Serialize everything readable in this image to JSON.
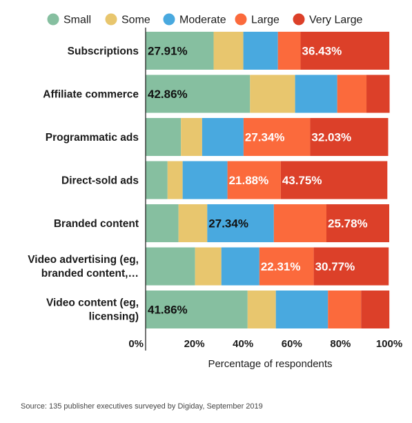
{
  "chart_data": {
    "type": "bar",
    "orientation": "horizontal",
    "stacked": true,
    "categories": [
      [
        "Subscriptions"
      ],
      [
        "Affiliate commerce"
      ],
      [
        "Programmatic ads"
      ],
      [
        "Direct-sold ads"
      ],
      [
        "Branded content"
      ],
      [
        "Video advertising (eg,",
        "branded content,…"
      ],
      [
        "Video content (eg,",
        "licensing)"
      ]
    ],
    "series": [
      {
        "name": "Small",
        "color": "#86bfa0",
        "values": [
          27.91,
          42.86,
          14.5,
          9.0,
          13.5,
          20.3,
          41.86
        ]
      },
      {
        "name": "Some",
        "color": "#e8c66e",
        "values": [
          12.2,
          18.5,
          8.7,
          6.2,
          11.8,
          10.8,
          11.6
        ]
      },
      {
        "name": "Moderate",
        "color": "#49a9df",
        "values": [
          14.2,
          17.3,
          17.0,
          18.4,
          27.34,
          15.6,
          21.4
        ]
      },
      {
        "name": "Large",
        "color": "#fb6a3c",
        "values": [
          9.3,
          12.0,
          27.34,
          21.88,
          21.58,
          22.31,
          13.6
        ]
      },
      {
        "name": "Very Large",
        "color": "#dc4029",
        "values": [
          36.43,
          9.5,
          32.03,
          43.75,
          25.78,
          30.77,
          11.6
        ]
      }
    ],
    "data_labels": [
      [
        {
          "series": 0,
          "text": "27.91%"
        },
        {
          "series": 4,
          "text": "36.43%"
        }
      ],
      [
        {
          "series": 0,
          "text": "42.86%"
        }
      ],
      [
        {
          "series": 3,
          "text": "27.34%"
        },
        {
          "series": 4,
          "text": "32.03%"
        }
      ],
      [
        {
          "series": 3,
          "text": "21.88%"
        },
        {
          "series": 4,
          "text": "43.75%"
        }
      ],
      [
        {
          "series": 2,
          "text": "27.34%"
        },
        {
          "series": 4,
          "text": "25.78%"
        }
      ],
      [
        {
          "series": 3,
          "text": "22.31%"
        },
        {
          "series": 4,
          "text": "30.77%"
        }
      ],
      [
        {
          "series": 0,
          "text": "41.86%"
        }
      ]
    ],
    "xlim": [
      0,
      100
    ],
    "xticks": [
      0,
      20,
      40,
      60,
      80,
      100
    ],
    "xtick_labels": [
      "0%",
      "20%",
      "40%",
      "60%",
      "80%",
      "100%"
    ],
    "xlabel": "Percentage of respondents",
    "ylabel": "",
    "title": "",
    "legend_position": "top",
    "grid": false
  },
  "source": "Source: 135 publisher executives surveyed by Digiday, September 2019"
}
